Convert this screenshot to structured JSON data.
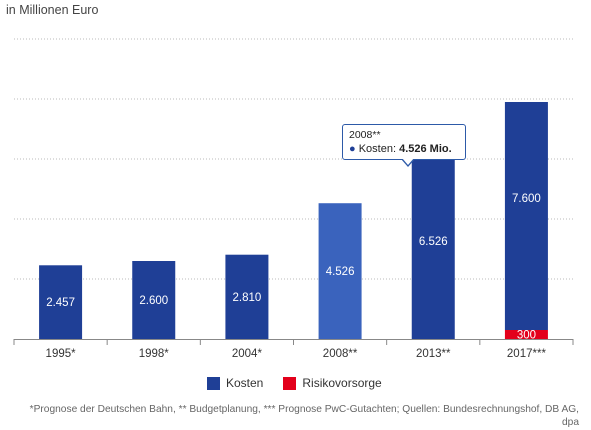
{
  "subtitle": "in Millionen Euro",
  "chart_data": {
    "type": "bar",
    "stacked": true,
    "categories": [
      "1995*",
      "1998*",
      "2004*",
      "2008**",
      "2013**",
      "2017***"
    ],
    "series": [
      {
        "name": "Kosten",
        "color": "#1f3f96",
        "values": [
          2457,
          2600,
          2810,
          4526,
          6526,
          7600
        ],
        "labels": [
          "2.457",
          "2.600",
          "2.810",
          "4.526",
          "6.526",
          "7.600"
        ]
      },
      {
        "name": "Risikovorsorge",
        "color": "#e3001b",
        "values": [
          0,
          0,
          0,
          0,
          0,
          300
        ],
        "labels": [
          "",
          "",
          "",
          "",
          "",
          "300"
        ]
      }
    ],
    "highlight_index": 3,
    "highlight_color": "#3a63bd",
    "ylim": [
      0,
      10000
    ],
    "grid": true
  },
  "tooltip": {
    "year": "2008**",
    "series": "Kosten:",
    "value": "4.526 Mio."
  },
  "legend": {
    "kosten": "Kosten",
    "risiko": "Risikovorsorge"
  },
  "source": "*Prognose der Deutschen Bahn, ** Budgetplanung, *** Prognose PwC-Gutachten; Quellen: Bundesrechnungshof, DB AG, dpa"
}
